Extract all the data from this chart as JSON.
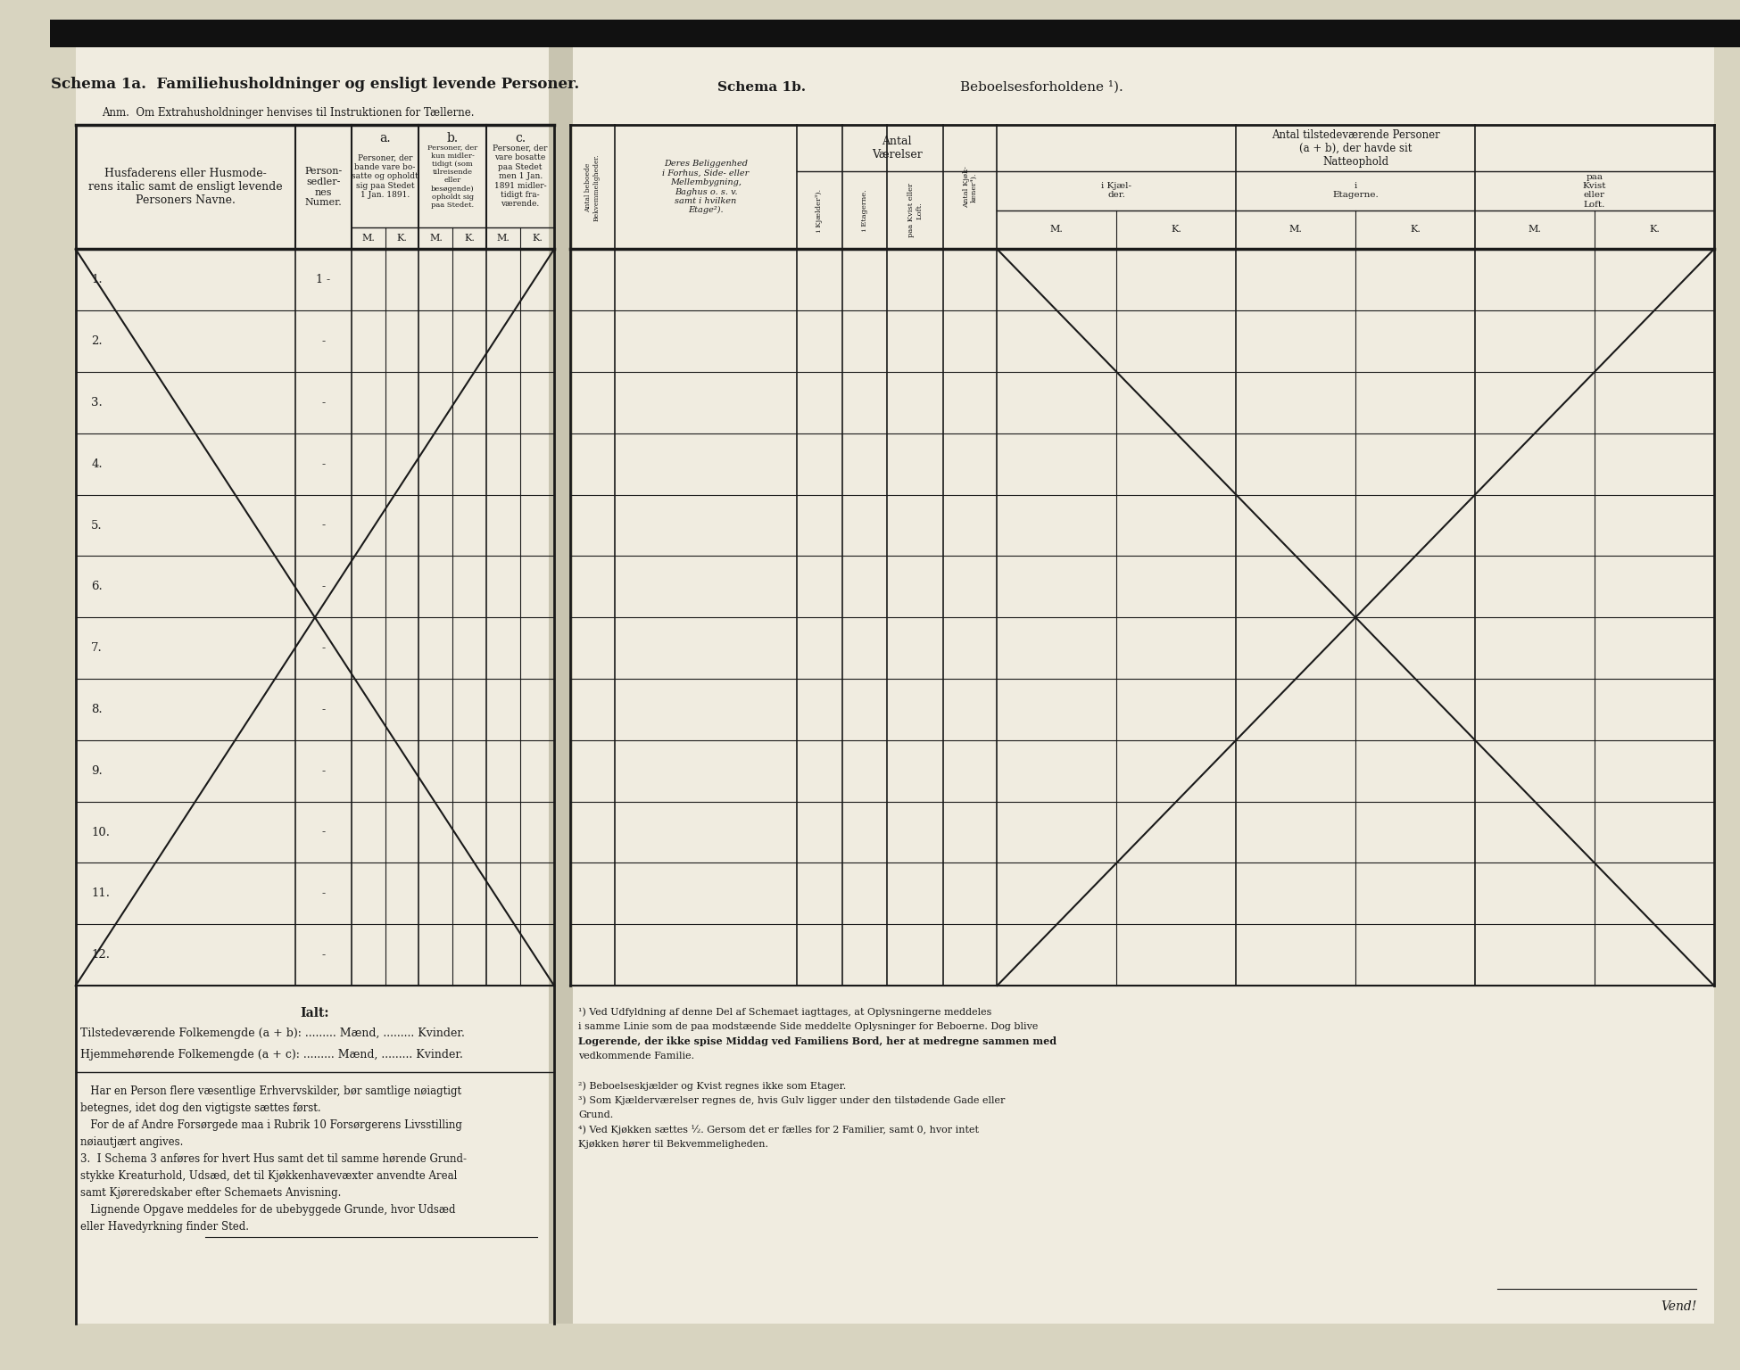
{
  "bg_color": "#d8d4c0",
  "paper_color": "#f0ece0",
  "line_color": "#1a1a1a",
  "text_color": "#1a1a1a",
  "title_left": "Schema 1a.  Familiehusholdninger og ensligt levende Personer.",
  "subtitle_left": "Anm.  Om Extrahusholdninger henvises til Instruktionen for Tællerne.",
  "title_right": "Schema 1b.",
  "title_right2": "Beboelsesforholdene ¹).",
  "col_header_main": "Husfaderens eller Husmode-\nrens samt de ensligt levende\nPersoners Navne.",
  "col_a_header": "Person-\nsedler-\nnes\nNumer.",
  "col_a_text": "Personer, der\nbande vare bo-\nsatte og opholdt\nsig paa Stedet\n1 Jan. 1891.",
  "col_b_text": "Personer, der\nkun midler-\ntidigt (som\ntilreisende\neller\nbesøgende)\nopholdt sig\npaa Stedet.",
  "col_c_text": "Personer, der\nvare bosatte\npaa Stedet\nmen 1 Jan.\n1891 midler-\ntidigt fra-\nværende.",
  "row_numbers": [
    "1.",
    "2.",
    "3.",
    "4.",
    "5.",
    "6.",
    "7.",
    "8.",
    "9.",
    "10.",
    "11.",
    "12."
  ],
  "row1_number": "1 -",
  "row_dash": "-",
  "ialt_label": "Ialt:",
  "vend_label": "Vend!"
}
